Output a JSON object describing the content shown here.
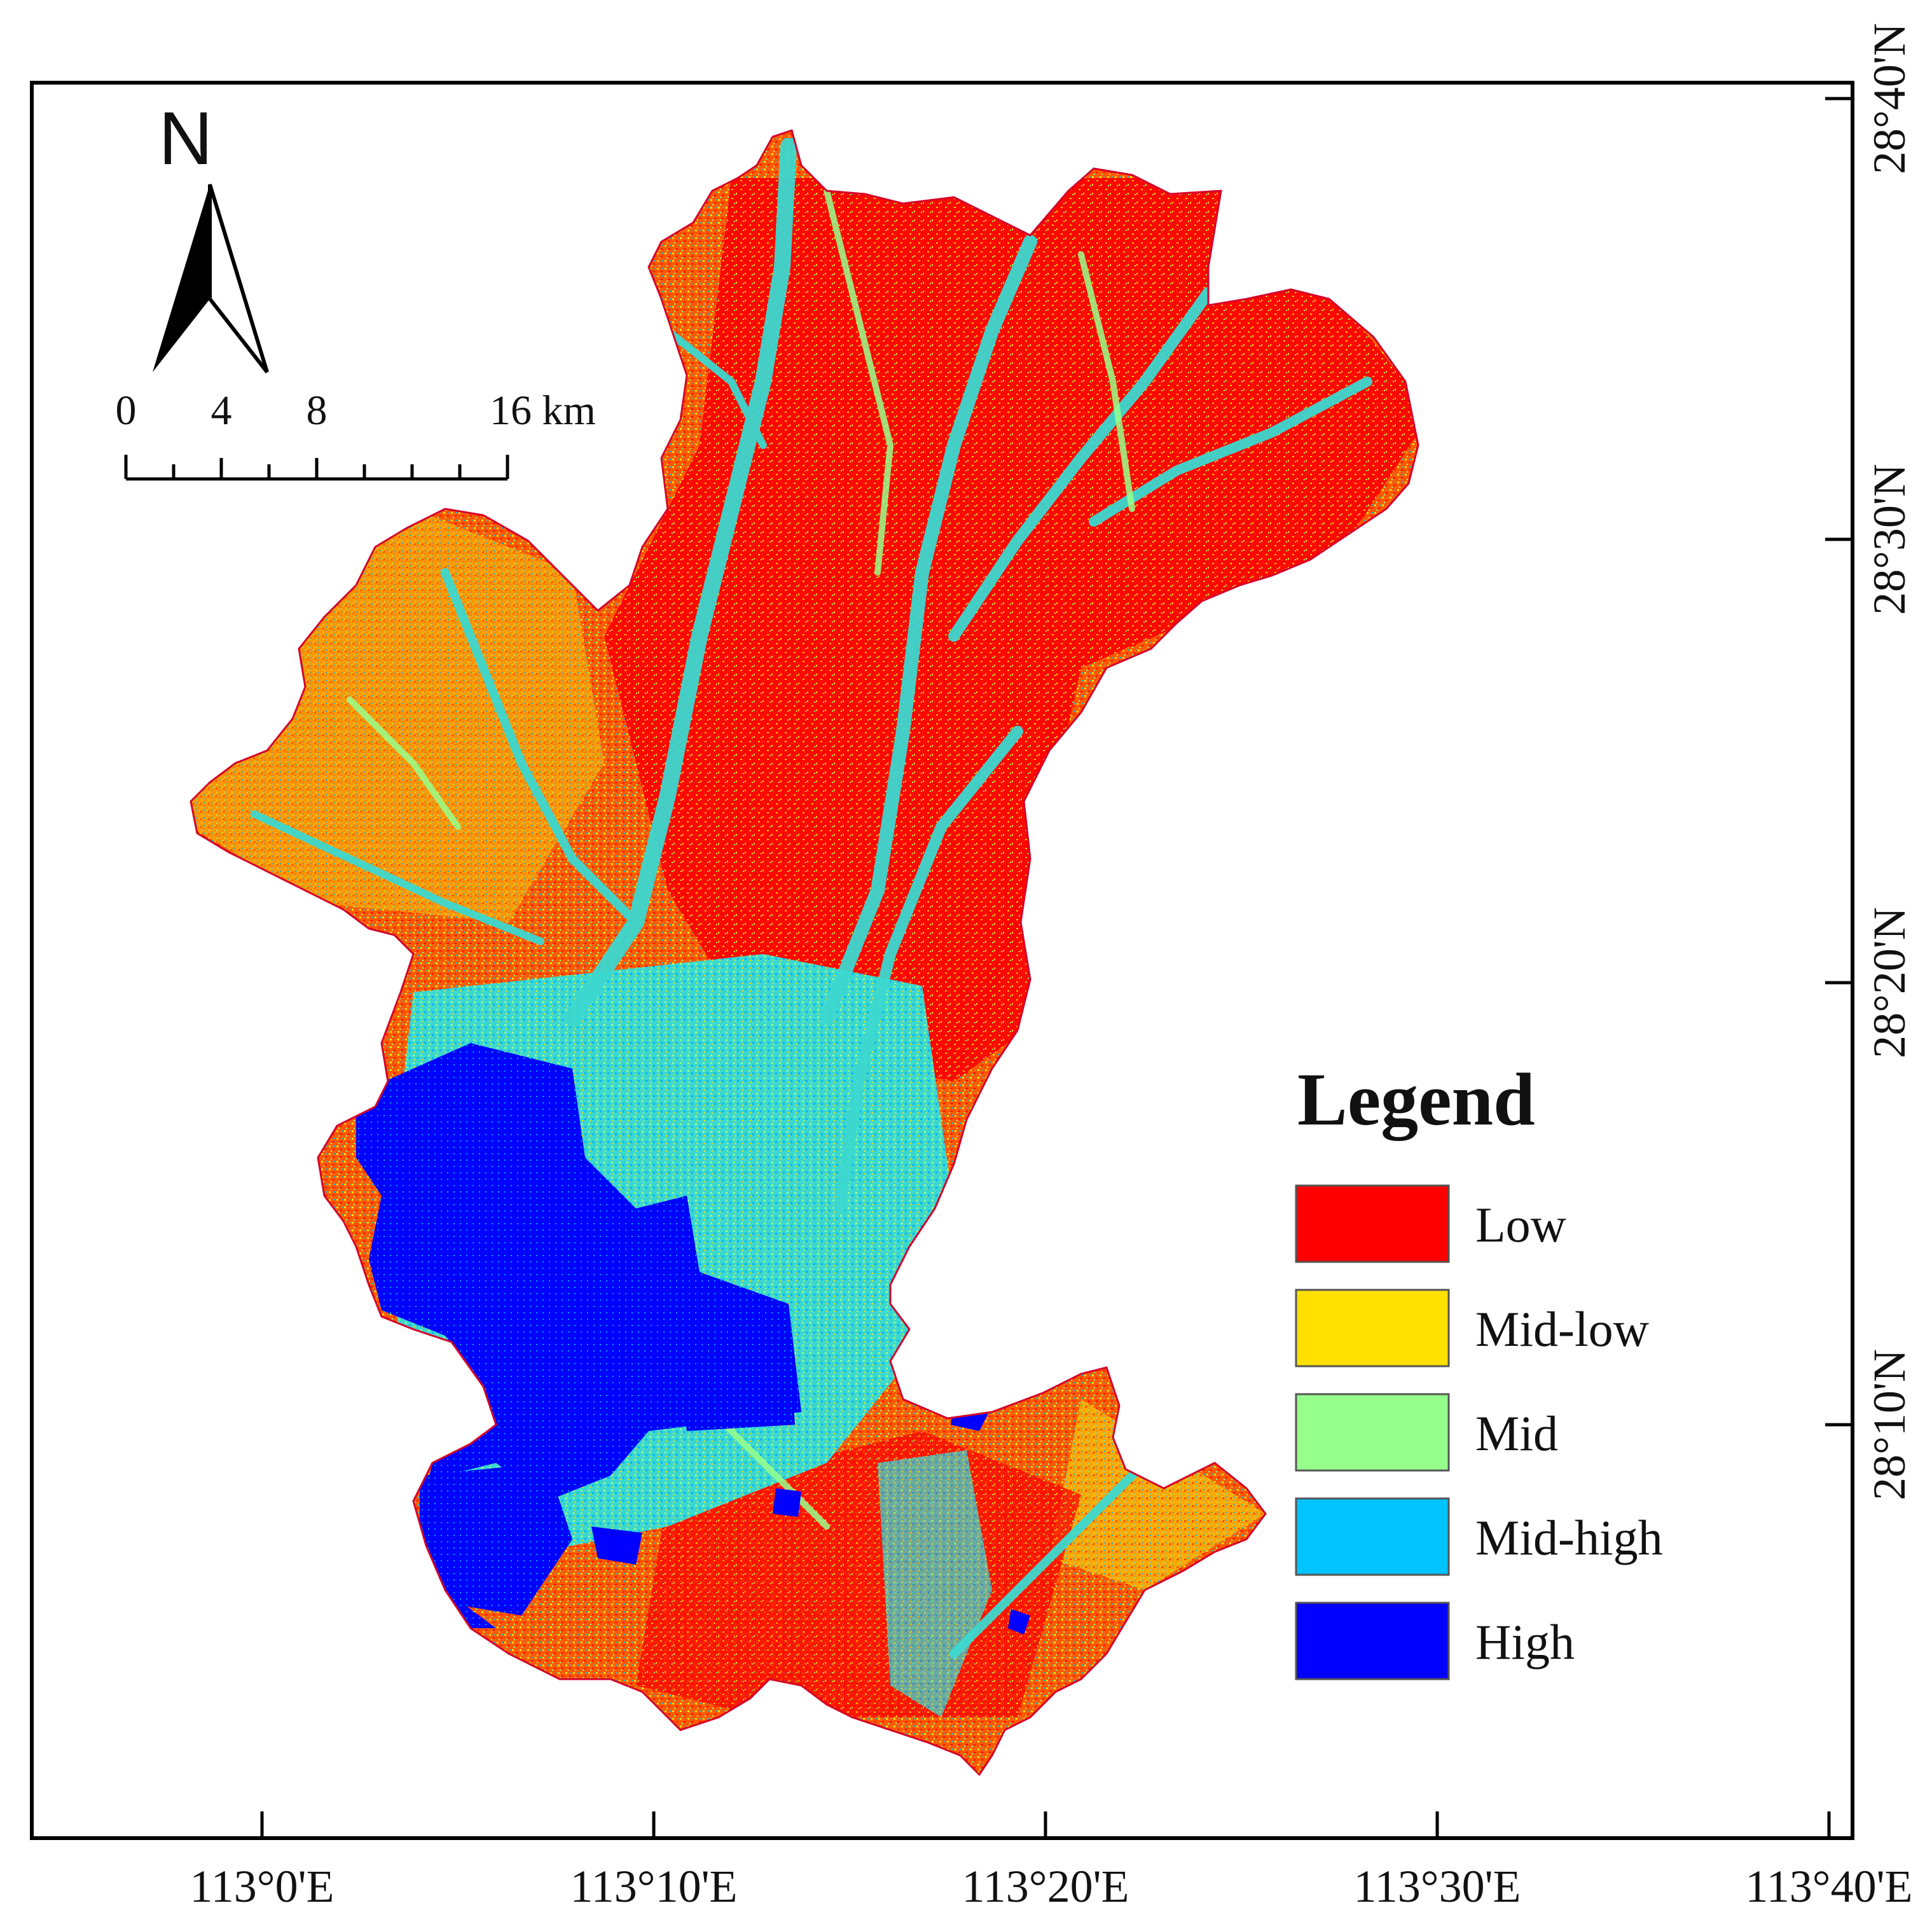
{
  "map": {
    "north_label": "N",
    "scale_bar": {
      "ticks": [
        "0",
        "4",
        "8",
        "16 km"
      ]
    },
    "x_axis_labels": [
      "113°0'E",
      "113°10'E",
      "113°20'E",
      "113°30'E",
      "113°40'E"
    ],
    "y_axis_labels": [
      "28°40'N",
      "28°30'N",
      "28°20'N",
      "28°10'N"
    ],
    "legend": {
      "title": "Legend",
      "items": [
        {
          "label": "Low",
          "color": "#ff0000"
        },
        {
          "label": "Mid-low",
          "color": "#ffe000"
        },
        {
          "label": "Mid",
          "color": "#96ff8c"
        },
        {
          "label": "Mid-high",
          "color": "#00c3ff"
        },
        {
          "label": "High",
          "color": "#0000ff"
        }
      ]
    },
    "colors": {
      "low": "#ff0000",
      "mid_low": "#ffe000",
      "mid": "#96ff8c",
      "mid_high": "#00c3ff",
      "high": "#0000ff",
      "frame": "#000000"
    }
  }
}
